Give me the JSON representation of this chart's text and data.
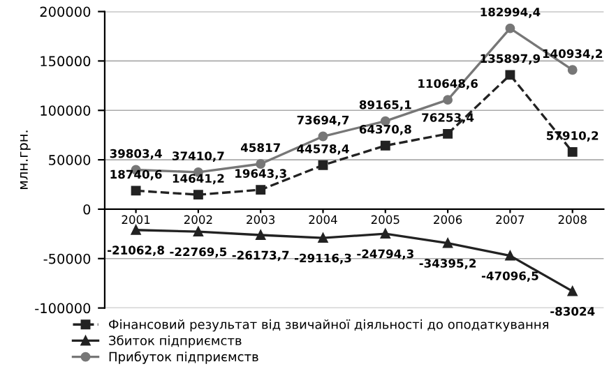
{
  "chart_data": {
    "type": "line",
    "ylabel": "млн.грн.",
    "categories": [
      "2001",
      "2002",
      "2003",
      "2004",
      "2005",
      "2006",
      "2007",
      "2008"
    ],
    "ylim": [
      -100000,
      200000
    ],
    "yticks": [
      -100000,
      -50000,
      0,
      50000,
      100000,
      150000,
      200000
    ],
    "grid": "y",
    "legend": "bottom",
    "series": [
      {
        "name": "Фінансовий результат від звичайної діяльності до оподаткування",
        "color": "#222222",
        "marker": "square",
        "line_style": "dashed",
        "values": [
          18740.6,
          14641.2,
          19643.3,
          44578.4,
          64370.8,
          76253.4,
          135897.9,
          57910.2
        ],
        "value_labels": [
          "18740,6",
          "14641,2",
          "19643,3",
          "44578,4",
          "64370,8",
          "76253,4",
          "135897,9",
          "57910,2"
        ]
      },
      {
        "name": "Збиток підприємств",
        "color": "#222222",
        "marker": "triangle",
        "line_style": "solid",
        "values": [
          -21062.8,
          -22769.5,
          -26173.7,
          -29116.3,
          -24794.3,
          -34395.2,
          -47096.5,
          -83024
        ],
        "value_labels": [
          "-21062,8",
          "-22769,5",
          "-26173,7",
          "-29116,3",
          "-24794,3",
          "-34395,2",
          "-47096,5",
          "-83024"
        ]
      },
      {
        "name": "Прибуток підприємств",
        "color": "#777777",
        "marker": "circle",
        "line_style": "solid",
        "values": [
          39803.4,
          37410.7,
          45817,
          73694.7,
          89165.1,
          110648.6,
          182994.4,
          140934.2
        ],
        "value_labels": [
          "39803,4",
          "37410,7",
          "45817",
          "73694,7",
          "89165,1",
          "110648,6",
          "182994,4",
          "140934,2"
        ]
      }
    ]
  }
}
